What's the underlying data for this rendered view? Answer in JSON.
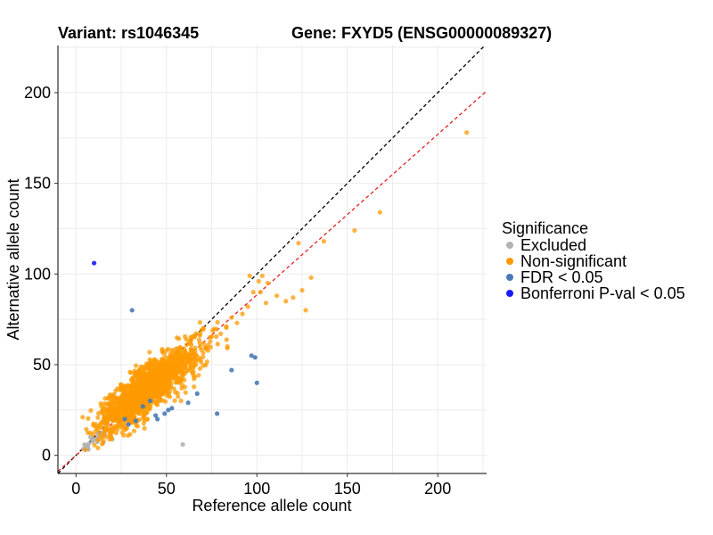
{
  "chart_data": {
    "type": "scatter",
    "title_left": "Variant: rs1046345",
    "title_right": "Gene: FXYD5 (ENSG00000089327)",
    "xlabel": "Reference allele count",
    "ylabel": "Alternative allele count",
    "xlim": [
      -10,
      227
    ],
    "ylim": [
      -10,
      226
    ],
    "xticks": [
      0,
      50,
      100,
      150,
      200
    ],
    "yticks": [
      0,
      50,
      100,
      150,
      200
    ],
    "grid": true,
    "legend_position": "right",
    "legend_title": "Significance",
    "colors": {
      "excluded": "#b3b3b3",
      "nonsig": "#ff9900",
      "fdr": "#4a7ab5",
      "bonf": "#1a1aff",
      "identity_line": "#000000",
      "fit_line": "#e52020"
    },
    "reference_lines": [
      {
        "name": "identity",
        "slope": 1.0,
        "intercept": 0,
        "style": "dashed"
      },
      {
        "name": "fit",
        "slope": 0.885,
        "intercept": 0,
        "style": "dashed"
      }
    ],
    "series": [
      {
        "key": "excluded",
        "name": "Excluded",
        "cluster": {
          "n": 25,
          "cx": 10,
          "cy": 8,
          "sx": 4,
          "sy": 3,
          "seed": 11
        },
        "points": [
          [
            59,
            6
          ],
          [
            8,
            10
          ],
          [
            12,
            12
          ],
          [
            6,
            5
          ],
          [
            15,
            7
          ],
          [
            20,
            9
          ]
        ]
      },
      {
        "key": "nonsig",
        "name": "Non-significant",
        "cluster": {
          "n": 1500,
          "cx": 40,
          "cy": 37,
          "sx": 14,
          "sy": 12,
          "seed": 7
        },
        "points": [
          [
            216,
            178
          ],
          [
            168,
            134
          ],
          [
            154,
            124
          ],
          [
            137,
            118
          ],
          [
            123,
            117
          ],
          [
            125,
            91
          ],
          [
            130,
            98
          ],
          [
            127,
            80
          ],
          [
            120,
            87
          ],
          [
            116,
            85
          ],
          [
            111,
            88
          ],
          [
            106,
            95
          ],
          [
            101,
            96
          ],
          [
            105,
            84
          ],
          [
            98,
            90
          ],
          [
            95,
            82
          ],
          [
            92,
            78
          ],
          [
            89,
            73
          ],
          [
            86,
            76
          ],
          [
            83,
            71
          ],
          [
            80,
            67
          ],
          [
            96,
            99
          ],
          [
            103,
            99
          ],
          [
            102,
            90
          ]
        ]
      },
      {
        "key": "fdr",
        "name": "FDR < 0.05",
        "points": [
          [
            31,
            80
          ],
          [
            97,
            55
          ],
          [
            99,
            54
          ],
          [
            100,
            40
          ],
          [
            86,
            47
          ],
          [
            67,
            34
          ],
          [
            78,
            23
          ],
          [
            62,
            29
          ],
          [
            53,
            26
          ],
          [
            49,
            23
          ],
          [
            45,
            20
          ],
          [
            27,
            20
          ],
          [
            37,
            27
          ],
          [
            41,
            30
          ],
          [
            33,
            19
          ],
          [
            44,
            22
          ],
          [
            51,
            25
          ],
          [
            29,
            17
          ]
        ]
      },
      {
        "key": "bonf",
        "name": "Bonferroni P-val < 0.05",
        "points": [
          [
            10,
            106
          ]
        ]
      }
    ]
  }
}
